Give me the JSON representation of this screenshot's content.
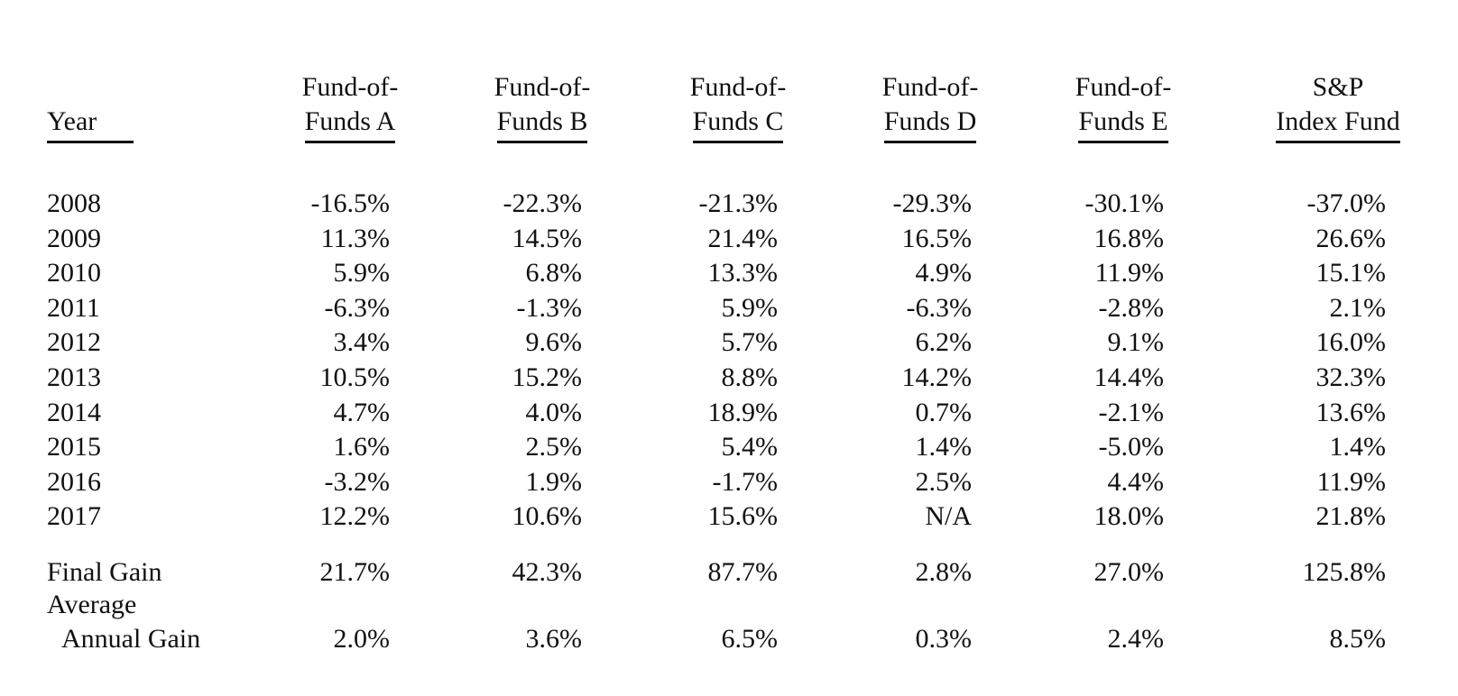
{
  "header": {
    "year": "Year",
    "columns": [
      [
        "Fund-of-",
        "Funds A"
      ],
      [
        "Fund-of-",
        "Funds B"
      ],
      [
        "Fund-of-",
        "Funds C"
      ],
      [
        "Fund-of-",
        "Funds D"
      ],
      [
        "Fund-of-",
        "Funds E"
      ],
      [
        "S&P",
        "Index Fund"
      ]
    ]
  },
  "rows": [
    {
      "year": "2008",
      "values": [
        "-16.5%",
        "-22.3%",
        "-21.3%",
        "-29.3%",
        "-30.1%",
        "-37.0%"
      ]
    },
    {
      "year": "2009",
      "values": [
        "11.3%",
        "14.5%",
        "21.4%",
        "16.5%",
        "16.8%",
        "26.6%"
      ]
    },
    {
      "year": "2010",
      "values": [
        "5.9%",
        "6.8%",
        "13.3%",
        "4.9%",
        "11.9%",
        "15.1%"
      ]
    },
    {
      "year": "2011",
      "values": [
        "-6.3%",
        "-1.3%",
        "5.9%",
        "-6.3%",
        "-2.8%",
        "2.1%"
      ]
    },
    {
      "year": "2012",
      "values": [
        "3.4%",
        "9.6%",
        "5.7%",
        "6.2%",
        "9.1%",
        "16.0%"
      ]
    },
    {
      "year": "2013",
      "values": [
        "10.5%",
        "15.2%",
        "8.8%",
        "14.2%",
        "14.4%",
        "32.3%"
      ]
    },
    {
      "year": "2014",
      "values": [
        "4.7%",
        "4.0%",
        "18.9%",
        "0.7%",
        "-2.1%",
        "13.6%"
      ]
    },
    {
      "year": "2015",
      "values": [
        "1.6%",
        "2.5%",
        "5.4%",
        "1.4%",
        "-5.0%",
        "1.4%"
      ]
    },
    {
      "year": "2016",
      "values": [
        "-3.2%",
        "1.9%",
        "-1.7%",
        "2.5%",
        "4.4%",
        "11.9%"
      ]
    },
    {
      "year": "2017",
      "values": [
        "12.2%",
        "10.6%",
        "15.6%",
        "N/A",
        "18.0%",
        "21.8%"
      ]
    }
  ],
  "summary": {
    "final_gain": {
      "label": "Final Gain",
      "values": [
        "21.7%",
        "42.3%",
        "87.7%",
        "2.8%",
        "27.0%",
        "125.8%"
      ]
    },
    "average_annual_gain": {
      "label_line1": "Average",
      "label_line2": "Annual Gain",
      "values": [
        "2.0%",
        "3.6%",
        "6.5%",
        "0.3%",
        "2.4%",
        "8.5%"
      ]
    }
  }
}
